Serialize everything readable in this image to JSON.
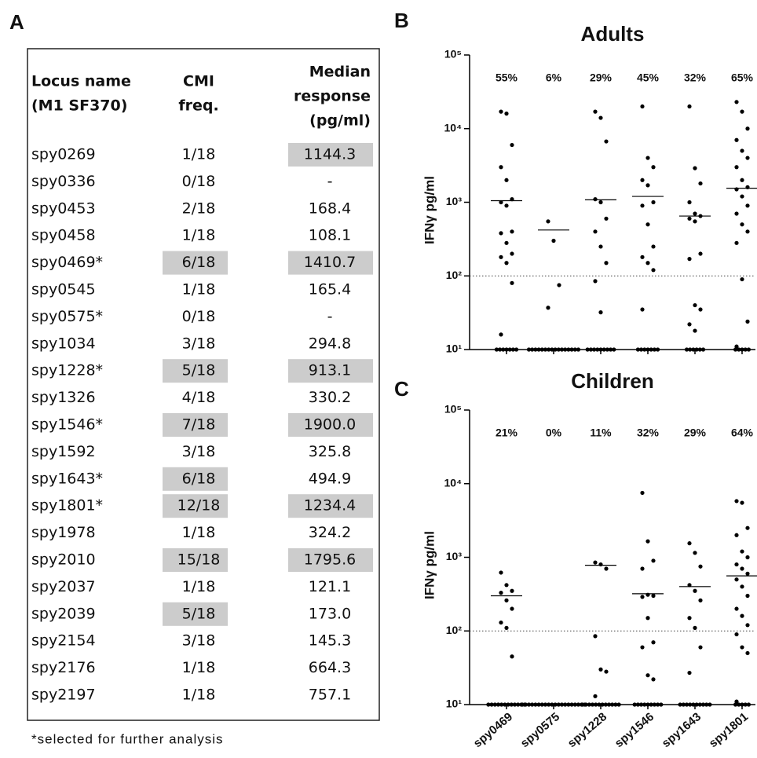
{
  "panel_labels": [
    "A",
    "B",
    "C"
  ],
  "table": {
    "headers": [
      [
        "Locus name",
        "(M1 SF370)"
      ],
      [
        "CMI",
        "freq."
      ],
      [
        "Median",
        "response",
        "(pg/ml)"
      ]
    ],
    "rows": [
      [
        "spy0269",
        "1/18",
        "1144.3"
      ],
      [
        "spy0336",
        "0/18",
        "-"
      ],
      [
        "spy0453",
        "2/18",
        "168.4"
      ],
      [
        "spy0458",
        "1/18",
        "108.1"
      ],
      [
        "spy0469*",
        "6/18",
        "1410.7"
      ],
      [
        "spy0545",
        "1/18",
        "165.4"
      ],
      [
        "spy0575*",
        "0/18",
        "-"
      ],
      [
        "spy1034",
        "3/18",
        "294.8"
      ],
      [
        "spy1228*",
        "5/18",
        "913.1"
      ],
      [
        "spy1326",
        "4/18",
        "330.2"
      ],
      [
        "spy1546*",
        "7/18",
        "1900.0"
      ],
      [
        "spy1592",
        "3/18",
        "325.8"
      ],
      [
        "spy1643*",
        "6/18",
        "494.9"
      ],
      [
        "spy1801*",
        "12/18",
        "1234.4"
      ],
      [
        "spy1978",
        "1/18",
        "324.2"
      ],
      [
        "spy2010",
        "15/18",
        "1795.6"
      ],
      [
        "spy2037",
        "1/18",
        "121.1"
      ],
      [
        "spy2039",
        "5/18",
        "173.0"
      ],
      [
        "spy2154",
        "3/18",
        "145.3"
      ],
      [
        "spy2176",
        "1/18",
        "664.3"
      ],
      [
        "spy2197",
        "1/18",
        "757.1"
      ]
    ],
    "highlighted": [
      [
        0,
        2
      ],
      [
        4,
        1
      ],
      [
        4,
        2
      ],
      [
        8,
        1
      ],
      [
        8,
        2
      ],
      [
        10,
        1
      ],
      [
        10,
        2
      ],
      [
        12,
        1
      ],
      [
        13,
        1
      ],
      [
        13,
        2
      ],
      [
        15,
        1
      ],
      [
        15,
        2
      ],
      [
        17,
        1
      ]
    ],
    "highlight_color": "#cccccc",
    "footnote": "*selected for further analysis"
  },
  "chart_data": [
    {
      "type": "dot",
      "title": "Adults",
      "ylabel": "IFNγ pg/ml",
      "log_y": true,
      "show_category_labels": false,
      "categories": [
        "spy0469",
        "spy0575",
        "spy1228",
        "spy1546",
        "spy1643",
        "spy1801"
      ],
      "values": [
        [
          17000,
          16000,
          6000,
          3000,
          2000,
          1100,
          1000,
          900,
          400,
          380,
          280,
          200,
          180,
          150,
          80,
          16,
          10,
          10,
          10,
          10,
          10,
          10,
          10
        ],
        [
          550,
          300,
          75,
          37,
          10,
          10,
          10,
          10,
          10,
          10,
          10,
          10,
          10,
          10,
          10,
          10,
          10,
          10,
          10,
          10
        ],
        [
          17000,
          14000,
          6700,
          1100,
          1000,
          600,
          400,
          250,
          150,
          85,
          32,
          10,
          10,
          10,
          10,
          10,
          10,
          10,
          10,
          10
        ],
        [
          20000,
          4000,
          3000,
          2000,
          1700,
          1000,
          900,
          500,
          250,
          180,
          150,
          120,
          35,
          10,
          10,
          10,
          10,
          10,
          10,
          10
        ],
        [
          20000,
          2900,
          1800,
          1000,
          700,
          650,
          600,
          550,
          200,
          170,
          40,
          35,
          22,
          18,
          10,
          10,
          10,
          10,
          10,
          10
        ],
        [
          23000,
          17000,
          10000,
          7000,
          5000,
          4000,
          3000,
          2000,
          1600,
          1500,
          1200,
          900,
          700,
          500,
          400,
          280,
          90,
          24,
          11,
          10,
          10,
          10,
          10,
          10
        ]
      ],
      "medians": [
        1050,
        420,
        1080,
        1200,
        650,
        1550
      ],
      "percent": {
        "values": [
          55,
          6,
          29,
          45,
          32,
          65
        ],
        "value_labels": [
          "55%",
          "6%",
          "29%",
          "45%",
          "32%",
          "65%"
        ]
      },
      "threshold": 100,
      "ylim": [
        10,
        100000
      ],
      "yticks": [
        {
          "value": 10,
          "label": "10¹"
        },
        {
          "value": 100,
          "label": "10²"
        },
        {
          "value": 1000,
          "label": "10³"
        },
        {
          "value": 10000,
          "label": "10⁴"
        },
        {
          "value": 100000,
          "label": "10⁵"
        }
      ]
    },
    {
      "type": "dot",
      "title": "Children",
      "ylabel": "IFNγ pg/ml",
      "log_y": true,
      "show_category_labels": true,
      "categories": [
        "spy0469",
        "spy0575",
        "spy1228",
        "spy1546",
        "spy1643",
        "spy1801"
      ],
      "values": [
        [
          620,
          420,
          350,
          330,
          260,
          200,
          130,
          110,
          45,
          10,
          10,
          10,
          10,
          10,
          10,
          10,
          10,
          10,
          10,
          10,
          10
        ],
        [
          10,
          10,
          10,
          10,
          10,
          10,
          10,
          10,
          10,
          10,
          10,
          10,
          10,
          10,
          10,
          10,
          10,
          10,
          10,
          10
        ],
        [
          850,
          800,
          700,
          85,
          30,
          28,
          13,
          10,
          10,
          10,
          10,
          10,
          10,
          10,
          10,
          10,
          10,
          10,
          10
        ],
        [
          7500,
          1650,
          900,
          700,
          310,
          300,
          290,
          150,
          70,
          60,
          25,
          22,
          10,
          10,
          10,
          10,
          10,
          10,
          10,
          10,
          10
        ],
        [
          1550,
          1150,
          750,
          420,
          350,
          260,
          150,
          110,
          60,
          27,
          10,
          10,
          10,
          10,
          10,
          10,
          10,
          10,
          10,
          10
        ],
        [
          5800,
          5500,
          2500,
          2000,
          1200,
          1000,
          800,
          700,
          600,
          500,
          400,
          300,
          200,
          160,
          120,
          90,
          60,
          50,
          11,
          10,
          10,
          10,
          10,
          10
        ]
      ],
      "medians": [
        300,
        null,
        780,
        320,
        400,
        560
      ],
      "percent": {
        "values": [
          21,
          0,
          11,
          32,
          29,
          64
        ],
        "value_labels": [
          "21%",
          "0%",
          "11%",
          "32%",
          "29%",
          "64%"
        ]
      },
      "threshold": 100,
      "ylim": [
        10,
        100000
      ],
      "yticks": [
        {
          "value": 10,
          "label": "10¹"
        },
        {
          "value": 100,
          "label": "10²"
        },
        {
          "value": 1000,
          "label": "10³"
        },
        {
          "value": 10000,
          "label": "10⁴"
        },
        {
          "value": 100000,
          "label": "10⁵"
        }
      ]
    }
  ]
}
